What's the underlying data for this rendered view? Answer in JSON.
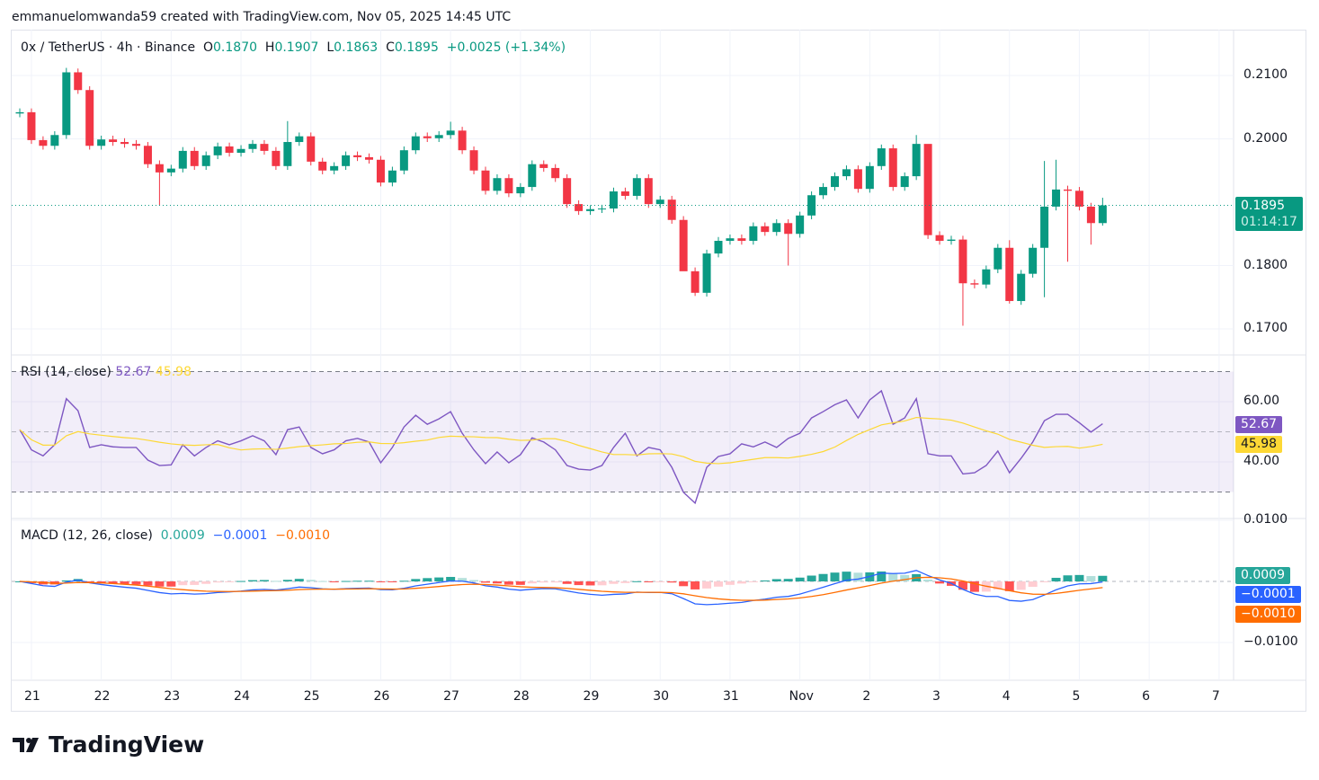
{
  "credit": "emmanuelomwanda59 created with TradingView.com, Nov 05, 2025 14:45 UTC",
  "legend": {
    "symbol": "0x / TetherUS · 4h · Binance",
    "o_label": "O",
    "o": "0.1870",
    "h_label": "H",
    "h": "0.1907",
    "l_label": "L",
    "l": "0.1863",
    "c_label": "C",
    "c": "0.1895",
    "change": "+0.0025 (+1.34%)"
  },
  "rsi_legend": {
    "title": "RSI (14, close)",
    "rsi": "52.67",
    "ma": "45.98"
  },
  "macd_legend": {
    "title": "MACD (12, 26, close)",
    "hist": "0.0009",
    "macd": "−0.0001",
    "signal": "−0.0010"
  },
  "badges": {
    "price": "0.1895",
    "countdown": "01:14:17",
    "rsi": "52.67",
    "rsi_ma": "45.98",
    "hist": "0.0009",
    "macd": "−0.0001",
    "signal": "−0.0010"
  },
  "logo": "TradingView",
  "colors": {
    "up": "#089981",
    "down": "#f23645",
    "rsi": "#7e57c2",
    "rsi_ma": "#fdd835",
    "macd": "#2962ff",
    "signal": "#ff6d00"
  },
  "chart_data": {
    "type": "candlestick",
    "title": "0x / TetherUS · 4h · Binance",
    "interval": "4h",
    "price_ticks": [
      "0.2100",
      "0.2000",
      "0.1800",
      "0.1700"
    ],
    "price_tick_values": [
      0.21,
      0.2,
      0.18,
      0.17
    ],
    "ylim": [
      0.1655,
      0.2167
    ],
    "x_labels": [
      "21",
      "22",
      "23",
      "24",
      "25",
      "26",
      "27",
      "28",
      "29",
      "30",
      "31",
      "Nov",
      "2",
      "3",
      "4",
      "5",
      "6",
      "7"
    ],
    "first_open": 0.204,
    "close": [
      0.2042,
      0.1998,
      0.1989,
      0.2006,
      0.2105,
      0.2077,
      0.1989,
      0.1999,
      0.1995,
      0.1992,
      0.1989,
      0.196,
      0.1947,
      0.1953,
      0.1981,
      0.1957,
      0.1974,
      0.1988,
      0.1978,
      0.1984,
      0.1992,
      0.1981,
      0.1957,
      0.1995,
      0.2004,
      0.1964,
      0.195,
      0.1957,
      0.1974,
      0.1971,
      0.1967,
      0.1931,
      0.195,
      0.1982,
      0.2004,
      0.2001,
      0.2006,
      0.2013,
      0.1982,
      0.195,
      0.1918,
      0.1938,
      0.1914,
      0.1924,
      0.196,
      0.1954,
      0.1938,
      0.1897,
      0.1886,
      0.1889,
      0.189,
      0.1917,
      0.191,
      0.1938,
      0.1897,
      0.1904,
      0.1872,
      0.1791,
      0.1757,
      0.1819,
      0.1839,
      0.1843,
      0.1839,
      0.1862,
      0.1853,
      0.1867,
      0.185,
      0.1879,
      0.1911,
      0.1924,
      0.1941,
      0.1952,
      0.1921,
      0.1957,
      0.1985,
      0.1924,
      0.1941,
      0.1992,
      0.1848,
      0.1839,
      0.1841,
      0.1772,
      0.177,
      0.1794,
      0.1828,
      0.1744,
      0.1787,
      0.1828,
      0.1893,
      0.192,
      0.1918,
      0.1893,
      0.1867,
      0.1895
    ],
    "wick_default": 0.0006,
    "wick_exceptions": [
      {
        "i": 12,
        "low": 0.1895
      },
      {
        "i": 4,
        "high": 0.2112
      },
      {
        "i": 23,
        "high": 0.2028
      },
      {
        "i": 37,
        "high": 0.2027
      },
      {
        "i": 57,
        "low": 0.184
      },
      {
        "i": 58,
        "low": 0.1752
      },
      {
        "i": 66,
        "low": 0.18
      },
      {
        "i": 77,
        "high": 0.2006
      },
      {
        "i": 78,
        "high": 0.1985
      },
      {
        "i": 81,
        "low": 0.1705
      },
      {
        "i": 85,
        "high": 0.184,
        "low": 0.174
      },
      {
        "i": 88,
        "high": 0.1965,
        "low": 0.175
      },
      {
        "i": 89,
        "high": 0.1967
      },
      {
        "i": 90,
        "low": 0.1806
      },
      {
        "i": 92,
        "low": 0.1833
      },
      {
        "i": 93,
        "high": 0.1907,
        "low": 0.1863
      }
    ],
    "last_price": 0.1895,
    "rsi": {
      "period": 14,
      "bands": [
        70,
        50,
        30
      ],
      "ticks": [
        "60.00",
        "40.00"
      ],
      "tick_values": [
        60,
        40
      ],
      "values": [
        50.7,
        44,
        42,
        45.7,
        61,
        57,
        44.8,
        45.7,
        45,
        44.8,
        44.8,
        40.6,
        38.8,
        39,
        45.7,
        42,
        44.8,
        47,
        45.7,
        47,
        48.7,
        47,
        42.4,
        50.7,
        51.6,
        44.8,
        42.7,
        44,
        47,
        47.8,
        46.6,
        39.7,
        44.8,
        51.6,
        55.5,
        52.5,
        54.3,
        56.7,
        49.5,
        44,
        39.4,
        43.3,
        39.7,
        42.4,
        48,
        46.6,
        44,
        38.8,
        37.6,
        37.3,
        38.8,
        44.8,
        49.5,
        42,
        44.8,
        44,
        38.2,
        29.9,
        26.3,
        38.2,
        41.8,
        42.7,
        46,
        45,
        46.6,
        44.8,
        47.8,
        49.5,
        54.6,
        56.7,
        59,
        60.6,
        54.6,
        60.6,
        63.6,
        52.5,
        54.6,
        61,
        42.7,
        42,
        42,
        36,
        36.4,
        38.8,
        43.6,
        36.4,
        41.2,
        46.6,
        53.7,
        55.8,
        55.8,
        53,
        49.9,
        52.67
      ]
    },
    "macd": {
      "fast": 12,
      "slow": 26,
      "signal": 9,
      "ticks": [
        "0.0100",
        "−0.0100"
      ],
      "tick_values": [
        0.01,
        -0.01
      ]
    }
  }
}
